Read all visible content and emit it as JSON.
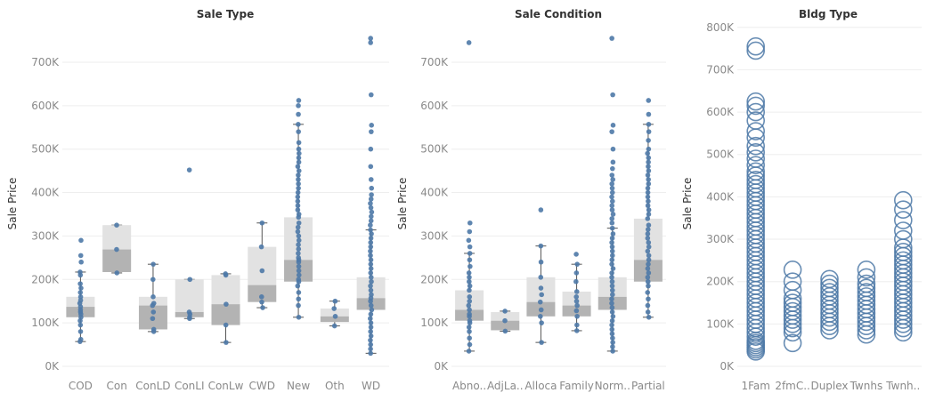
{
  "colors": {
    "point": "#4e79a7",
    "box_upper": "#e2e2e2",
    "box_lower": "#b3b3b3",
    "whisker": "#555555",
    "grid": "#eeeeee",
    "axis_text": "#8a8a8a"
  },
  "chart_data": [
    {
      "type": "boxplot",
      "title": "Sale Type",
      "ylabel": "Sale Price",
      "ylim": [
        0,
        790000
      ],
      "yticks": [
        0,
        100000,
        200000,
        300000,
        400000,
        500000,
        600000,
        700000
      ],
      "ytick_labels": [
        "0K",
        "100K",
        "200K",
        "300K",
        "400K",
        "500K",
        "600K",
        "700K"
      ],
      "categories": [
        "COD",
        "Con",
        "ConLD",
        "ConLI",
        "ConLw",
        "CWD",
        "New",
        "Oth",
        "WD"
      ],
      "boxes": [
        {
          "min": 57000,
          "q1": 113000,
          "median": 137000,
          "q3": 160000,
          "max": 217000,
          "points": [
            57000,
            62000,
            80000,
            95000,
            105000,
            113000,
            120000,
            125000,
            130000,
            137000,
            145000,
            152000,
            160000,
            170000,
            180000,
            190000,
            210000,
            217000,
            240000,
            255000,
            290000
          ]
        },
        {
          "min": 215000,
          "q1": 217000,
          "median": 269000,
          "q3": 325000,
          "max": 325000,
          "points": [
            215000,
            269000,
            325000
          ]
        },
        {
          "min": 80000,
          "q1": 85000,
          "median": 140000,
          "q3": 160000,
          "max": 235000,
          "points": [
            80000,
            85000,
            110000,
            125000,
            140000,
            145000,
            160000,
            200000,
            235000
          ]
        },
        {
          "min": 110000,
          "q1": 113000,
          "median": 125000,
          "q3": 200000,
          "max": 200000,
          "points": [
            110000,
            113000,
            120000,
            125000,
            200000,
            452000
          ]
        },
        {
          "min": 55000,
          "q1": 95000,
          "median": 143000,
          "q3": 210000,
          "max": 213000,
          "points": [
            55000,
            95000,
            143000,
            210000,
            213000
          ]
        },
        {
          "min": 135000,
          "q1": 148000,
          "median": 187000,
          "q3": 275000,
          "max": 330000,
          "points": [
            135000,
            148000,
            160000,
            220000,
            275000,
            330000
          ]
        },
        {
          "min": 113000,
          "q1": 195000,
          "median": 245000,
          "q3": 343000,
          "max": 557000,
          "points": [
            113000,
            140000,
            155000,
            170000,
            185000,
            195000,
            200000,
            210000,
            220000,
            230000,
            240000,
            245000,
            250000,
            260000,
            270000,
            280000,
            290000,
            300000,
            310000,
            320000,
            330000,
            343000,
            350000,
            360000,
            370000,
            380000,
            390000,
            400000,
            410000,
            420000,
            430000,
            440000,
            450000,
            460000,
            470000,
            480000,
            490000,
            500000,
            515000,
            540000,
            557000,
            580000,
            600000,
            612000
          ]
        },
        {
          "min": 93000,
          "q1": 102000,
          "median": 115000,
          "q3": 133000,
          "max": 150000,
          "points": [
            93000,
            115000,
            133000,
            150000
          ]
        },
        {
          "min": 30000,
          "q1": 130000,
          "median": 157000,
          "q3": 205000,
          "max": 314000,
          "points": [
            30000,
            40000,
            50000,
            60000,
            70000,
            80000,
            90000,
            100000,
            110000,
            120000,
            130000,
            140000,
            150000,
            157000,
            165000,
            175000,
            185000,
            195000,
            205000,
            215000,
            225000,
            235000,
            245000,
            255000,
            265000,
            275000,
            285000,
            295000,
            305000,
            314000,
            325000,
            335000,
            345000,
            355000,
            365000,
            375000,
            385000,
            395000,
            410000,
            430000,
            460000,
            500000,
            540000,
            555000,
            625000,
            745000,
            755000
          ]
        }
      ]
    },
    {
      "type": "boxplot",
      "title": "Sale Condition",
      "ylabel": "Sale Price",
      "ylim": [
        0,
        790000
      ],
      "yticks": [
        0,
        100000,
        200000,
        300000,
        400000,
        500000,
        600000,
        700000
      ],
      "ytick_labels": [
        "0K",
        "100K",
        "200K",
        "300K",
        "400K",
        "500K",
        "600K",
        "700K"
      ],
      "categories": [
        "Abno..",
        "AdjLa..",
        "Alloca",
        "Family",
        "Norm..",
        "Partial"
      ],
      "boxes": [
        {
          "min": 35000,
          "q1": 105000,
          "median": 130000,
          "q3": 175000,
          "max": 260000,
          "points": [
            35000,
            50000,
            65000,
            80000,
            90000,
            100000,
            105000,
            115000,
            120000,
            130000,
            140000,
            150000,
            160000,
            175000,
            185000,
            195000,
            205000,
            215000,
            230000,
            245000,
            260000,
            275000,
            290000,
            310000,
            330000,
            745000
          ]
        },
        {
          "min": 81000,
          "q1": 83000,
          "median": 105000,
          "q3": 125000,
          "max": 127000,
          "points": [
            81000,
            105000,
            127000
          ]
        },
        {
          "min": 55000,
          "q1": 115000,
          "median": 148000,
          "q3": 205000,
          "max": 277000,
          "points": [
            55000,
            100000,
            115000,
            130000,
            148000,
            165000,
            180000,
            205000,
            240000,
            277000,
            360000
          ]
        },
        {
          "min": 82000,
          "q1": 115000,
          "median": 140000,
          "q3": 172000,
          "max": 235000,
          "points": [
            82000,
            95000,
            115000,
            128000,
            140000,
            150000,
            160000,
            172000,
            195000,
            215000,
            235000,
            258000
          ]
        },
        {
          "min": 35000,
          "q1": 130000,
          "median": 160000,
          "q3": 205000,
          "max": 318000,
          "points": [
            35000,
            45000,
            55000,
            65000,
            75000,
            85000,
            95000,
            105000,
            115000,
            125000,
            135000,
            145000,
            155000,
            165000,
            175000,
            185000,
            195000,
            205000,
            215000,
            225000,
            235000,
            245000,
            255000,
            265000,
            275000,
            285000,
            295000,
            305000,
            318000,
            330000,
            340000,
            350000,
            360000,
            370000,
            380000,
            390000,
            400000,
            410000,
            420000,
            430000,
            440000,
            455000,
            470000,
            500000,
            540000,
            555000,
            625000,
            755000
          ]
        },
        {
          "min": 113000,
          "q1": 195000,
          "median": 245000,
          "q3": 340000,
          "max": 557000,
          "points": [
            113000,
            125000,
            140000,
            155000,
            170000,
            185000,
            195000,
            205000,
            215000,
            225000,
            235000,
            245000,
            255000,
            265000,
            275000,
            285000,
            295000,
            305000,
            315000,
            325000,
            340000,
            350000,
            360000,
            370000,
            380000,
            390000,
            400000,
            410000,
            420000,
            430000,
            440000,
            450000,
            460000,
            470000,
            480000,
            490000,
            500000,
            520000,
            540000,
            557000,
            580000,
            612000
          ]
        }
      ]
    },
    {
      "type": "scatter",
      "title": "Bldg Type",
      "ylabel": "Sale Price",
      "ylim": [
        0,
        810000
      ],
      "yticks": [
        0,
        100000,
        200000,
        300000,
        400000,
        500000,
        600000,
        700000,
        800000
      ],
      "ytick_labels": [
        "0K",
        "100K",
        "200K",
        "300K",
        "400K",
        "500K",
        "600K",
        "700K",
        "800K"
      ],
      "categories": [
        "1Fam",
        "2fmC..",
        "Duplex",
        "Twnhs",
        "Twnh.."
      ],
      "groups": [
        {
          "points": [
            35000,
            40000,
            45000,
            50000,
            55000,
            60000,
            70000,
            80000,
            90000,
            100000,
            110000,
            120000,
            130000,
            140000,
            150000,
            160000,
            170000,
            180000,
            190000,
            200000,
            210000,
            220000,
            230000,
            240000,
            250000,
            260000,
            270000,
            280000,
            290000,
            300000,
            310000,
            320000,
            330000,
            340000,
            350000,
            360000,
            370000,
            380000,
            390000,
            400000,
            410000,
            420000,
            430000,
            440000,
            450000,
            460000,
            475000,
            490000,
            505000,
            520000,
            540000,
            555000,
            580000,
            600000,
            615000,
            625000,
            745000,
            755000
          ]
        },
        {
          "points": [
            55000,
            80000,
            90000,
            100000,
            110000,
            120000,
            130000,
            140000,
            150000,
            160000,
            180000,
            200000,
            228000
          ]
        },
        {
          "points": [
            85000,
            95000,
            105000,
            115000,
            125000,
            135000,
            145000,
            155000,
            165000,
            175000,
            185000,
            195000,
            206000
          ]
        },
        {
          "points": [
            75000,
            85000,
            95000,
            105000,
            115000,
            125000,
            135000,
            145000,
            155000,
            165000,
            175000,
            185000,
            195000,
            210000,
            228000
          ]
        },
        {
          "points": [
            80000,
            90000,
            100000,
            110000,
            120000,
            130000,
            140000,
            150000,
            160000,
            170000,
            180000,
            190000,
            200000,
            210000,
            220000,
            230000,
            240000,
            250000,
            260000,
            270000,
            280000,
            300000,
            320000,
            345000,
            370000,
            392000
          ]
        }
      ]
    }
  ]
}
